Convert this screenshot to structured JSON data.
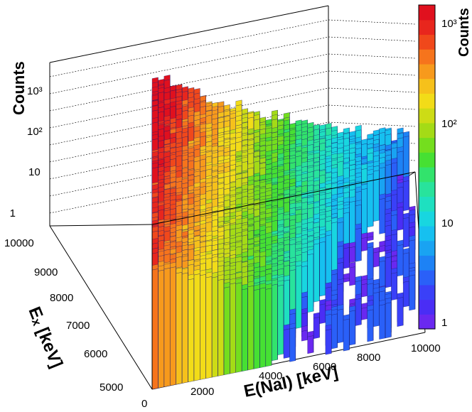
{
  "chart_data": {
    "type": "lego",
    "z_axis": {
      "label": "Counts",
      "scale": "log",
      "ticks": [
        "1",
        "10",
        "10²",
        "10³"
      ],
      "range": [
        0.5,
        5000
      ]
    },
    "y_axis": {
      "label": "Eₓ [keV]",
      "ticks": [
        "5000",
        "6000",
        "7000",
        "8000",
        "9000",
        "10000"
      ],
      "range": [
        4500,
        10000
      ]
    },
    "x_axis": {
      "label": "E(NaI) [keV]",
      "ticks": [
        "0",
        "2000",
        "4000",
        "6000",
        "8000",
        "10000"
      ],
      "range": [
        0,
        10500
      ]
    },
    "colorbar": {
      "label": "Counts",
      "scale": "log",
      "ticks": [
        "1",
        "10",
        "10²",
        "10³"
      ],
      "range": [
        1,
        1500
      ],
      "colors": [
        "#6a28f0",
        "#4a2df5",
        "#3a40f8",
        "#2a60f8",
        "#1d82f5",
        "#19a3f2",
        "#16c0f0",
        "#18d6e0",
        "#1ee0c0",
        "#28e39c",
        "#32e36c",
        "#46e033",
        "#74de1e",
        "#a4db16",
        "#cddc15",
        "#f2dc18",
        "#f6c11b",
        "#f79a1c",
        "#f6741c",
        "#f0481b",
        "#e8261d",
        "#e0101e"
      ]
    },
    "grid": true,
    "surface": "ridge peaking near E(NaI)=0 / Ex=10000 (~1500 counts), falling along E(NaI)=Ex diagonal, noisy low counts elsewhere"
  }
}
